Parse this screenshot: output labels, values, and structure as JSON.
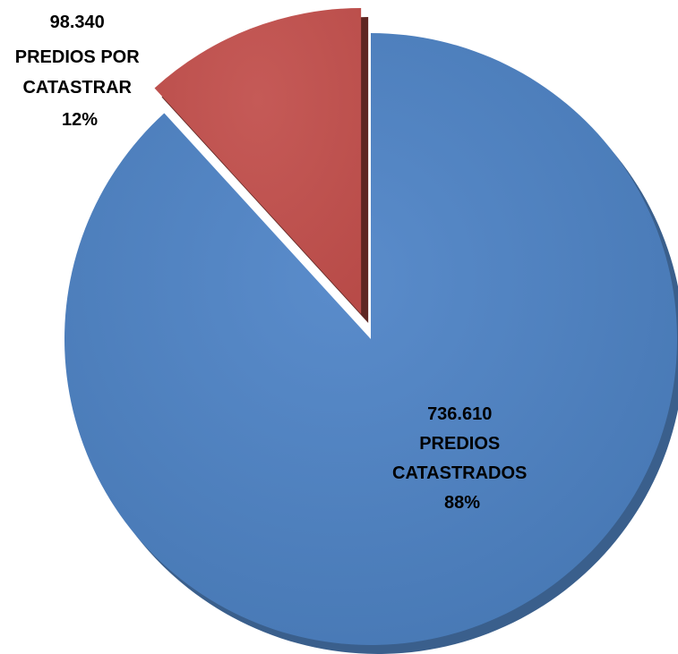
{
  "chart_data": {
    "type": "pie",
    "slices": [
      {
        "value_label": "736.610",
        "name_lines": [
          "PREDIOS",
          "CATASTRADOS"
        ],
        "percent_label": "88%",
        "value": 736610,
        "percent": 88,
        "color": "#4F81BD",
        "exploded": false
      },
      {
        "value_label": "98.340",
        "name_lines": [
          "PREDIOS POR",
          "CATASTRAR"
        ],
        "percent_label": "12%",
        "value": 98340,
        "percent": 12,
        "color": "#C0504D",
        "exploded": true
      }
    ],
    "grid": false,
    "legend": "none"
  }
}
